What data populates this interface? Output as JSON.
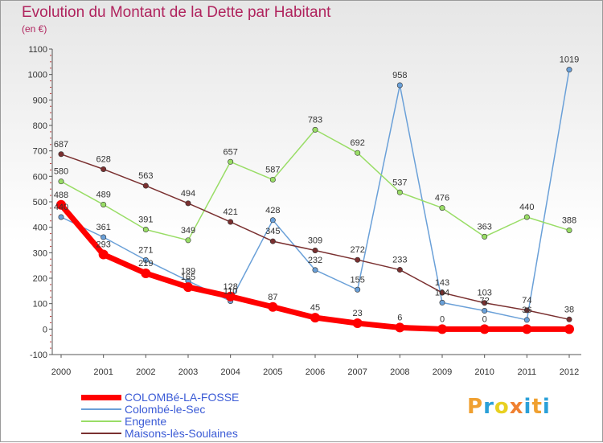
{
  "header": {
    "title": "Evolution du Montant de la Dette par Habitant",
    "subtitle": "(en €)"
  },
  "brand": {
    "text": "Proxiti",
    "letters": [
      "P",
      "r",
      "o",
      "x",
      "i",
      "t",
      "i"
    ],
    "colors": [
      "#f0a030",
      "#2aa0d8",
      "#e8d020",
      "#f08030",
      "#2aa0d8",
      "#f0a030",
      "#2aa0d8"
    ]
  },
  "chart_data": {
    "type": "line",
    "title": "Evolution du Montant de la Dette par Habitant",
    "subtitle": "(en €)",
    "xlabel": "",
    "ylabel": "",
    "categories": [
      "2000",
      "2001",
      "2002",
      "2003",
      "2004",
      "2005",
      "2006",
      "2007",
      "2008",
      "2009",
      "2010",
      "2011",
      "2012"
    ],
    "ylim": [
      -100,
      1100
    ],
    "yticks": [
      -100,
      0,
      100,
      200,
      300,
      400,
      500,
      600,
      700,
      800,
      900,
      1000,
      1100
    ],
    "grid": false,
    "legend_position": "bottom",
    "series": [
      {
        "name": "COLOMBé-LA-FOSSE",
        "color": "#ff0000",
        "emphasis": true,
        "values": [
          488,
          293,
          219,
          165,
          128,
          87,
          45,
          23,
          6,
          0,
          0,
          0,
          0
        ],
        "labels": [
          "488",
          "293",
          "219",
          "165",
          "128",
          "87",
          "45",
          "23",
          "6",
          "0",
          "0",
          "",
          ""
        ]
      },
      {
        "name": "Colombé-le-Sec",
        "color": "#6aa0d8",
        "values": [
          440,
          361,
          271,
          189,
          110,
          428,
          232,
          155,
          958,
          104,
          72,
          36,
          1019
        ],
        "labels": [
          "440",
          "361",
          "271",
          "189",
          "110",
          "428",
          "232",
          "155",
          "958",
          "104",
          "72",
          "36",
          "1019"
        ]
      },
      {
        "name": "Engente",
        "color": "#99dd66",
        "values": [
          580,
          489,
          391,
          349,
          657,
          587,
          783,
          692,
          537,
          476,
          363,
          440,
          388
        ],
        "labels": [
          "580",
          "489",
          "391",
          "349",
          "657",
          "587",
          "783",
          "692",
          "537",
          "476",
          "363",
          "440",
          "388"
        ]
      },
      {
        "name": "Maisons-lès-Soulaines",
        "color": "#7a3030",
        "values": [
          687,
          628,
          563,
          494,
          421,
          345,
          309,
          272,
          233,
          143,
          103,
          74,
          38
        ],
        "labels": [
          "687",
          "628",
          "563",
          "494",
          "421",
          "345",
          "309",
          "272",
          "233",
          "143",
          "103",
          "74",
          "38"
        ]
      }
    ]
  }
}
